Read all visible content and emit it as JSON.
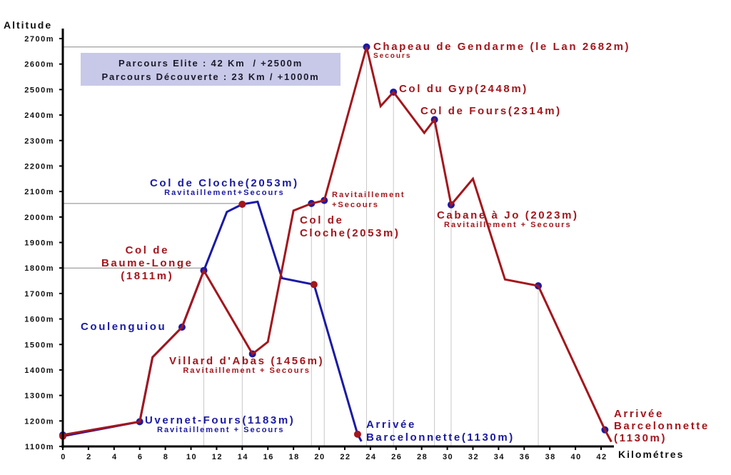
{
  "chart_data": {
    "type": "line",
    "title": "",
    "xlabel": "Kilométres",
    "ylabel": "Altitude",
    "xlim": [
      0,
      43
    ],
    "ylim": [
      1100,
      2700
    ],
    "x_ticks": [
      0,
      2,
      4,
      6,
      8,
      10,
      12,
      14,
      16,
      18,
      20,
      22,
      24,
      26,
      28,
      30,
      32,
      34,
      36,
      38,
      40,
      42
    ],
    "y_ticks": [
      "1100m",
      "1200m",
      "1300m",
      "1400m",
      "1500m",
      "1600m",
      "1700m",
      "1800m",
      "1900m",
      "2000m",
      "2100m",
      "2200m",
      "2300m",
      "2400m",
      "2500m",
      "2600m",
      "2700m"
    ],
    "grid": "partial vertical guide lines at checkpoints",
    "legend": "none",
    "series": [
      {
        "name": "Parcours Elite",
        "color": "#a3161c",
        "points": [
          [
            0,
            1145
          ],
          [
            6,
            1197
          ],
          [
            7,
            1450
          ],
          [
            9.3,
            1568
          ],
          [
            11,
            1790
          ],
          [
            14.8,
            1463
          ],
          [
            16,
            1510
          ],
          [
            18,
            2025
          ],
          [
            19.4,
            2053
          ],
          [
            20.4,
            2065
          ],
          [
            23.7,
            2667
          ],
          [
            24.8,
            2435
          ],
          [
            25.8,
            2490
          ],
          [
            28.2,
            2330
          ],
          [
            29,
            2382
          ],
          [
            30.3,
            2048
          ],
          [
            32,
            2150
          ],
          [
            34.5,
            1755
          ],
          [
            37.1,
            1730
          ],
          [
            42.3,
            1165
          ],
          [
            42.8,
            1118
          ]
        ]
      },
      {
        "name": "Parcours Découverte",
        "color": "#1a1aa6",
        "points": [
          [
            0,
            1140
          ],
          [
            6,
            1197
          ],
          [
            7,
            1450
          ],
          [
            9.3,
            1568
          ],
          [
            11,
            1790
          ],
          [
            12.8,
            2020
          ],
          [
            14,
            2050
          ],
          [
            15.2,
            2060
          ],
          [
            17.1,
            1760
          ],
          [
            19.6,
            1735
          ],
          [
            23,
            1148
          ],
          [
            23.3,
            1120
          ]
        ]
      }
    ],
    "annotations": [
      {
        "text": "Chapeau de Gendarme (le Lan 2682m)",
        "sub": "Secours",
        "series": "Elite"
      },
      {
        "text": "Col du Gyp(2448m)",
        "series": "Elite"
      },
      {
        "text": "Col de Fours(2314m)",
        "series": "Elite"
      },
      {
        "text": "Cabane à Jo (2023m)",
        "sub": "Ravitaillement + Secours",
        "series": "Elite"
      },
      {
        "text": "Col de Cloche(2053m)",
        "sub": "Ravitaillement+Secours",
        "series": "Elite"
      },
      {
        "text": "Col de Cloche(2053m)",
        "sub": "Ravitaillement+Secours",
        "series": "Découverte"
      },
      {
        "text": "Col de Baume-Longe (1811m)",
        "series": "Elite"
      },
      {
        "text": "Coulenguiou",
        "series": "Découverte"
      },
      {
        "text": "Villard d'Abas (1456m)",
        "sub": "Ravitaillement + Secours",
        "series": "Elite"
      },
      {
        "text": "Uvernet-Fours(1183m)",
        "sub": "Ravitaillement + Secours",
        "series": "Découverte"
      },
      {
        "text": "Arrivée Barcelonnette(1130m)",
        "series": "Découverte"
      },
      {
        "text": "Arrivée Barcelonnette (1130m)",
        "series": "Elite"
      }
    ]
  },
  "axes": {
    "y_title": "Altitude",
    "x_title": "Kilométres"
  },
  "info_box": {
    "line1": "Parcours Elite : 42 Km  / +2500m",
    "line2": "Parcours Découverte : 23 Km / +1000m"
  },
  "labels": {
    "chapeau": "Chapeau de Gendarme (le Lan 2682m)",
    "chapeau_sub": "Secours",
    "gyp": "Col du Gyp(2448m)",
    "fours": "Col de Fours(2314m)",
    "cabane": "Cabane à Jo (2023m)",
    "cabane_sub": "Ravitaillement + Secours",
    "ravit_red_1": "Ravitaillement",
    "ravit_red_2": "+Secours",
    "cloche_red_1": "Col de",
    "cloche_red_2": "Cloche(2053m)",
    "cloche_blue": "Col de Cloche(2053m)",
    "cloche_blue_sub": "Ravitaillement+Secours",
    "baume_1": "Col de",
    "baume_2": "Baume-Longe",
    "baume_3": "(1811m)",
    "coulenguiou": "Coulenguiou",
    "villard": "Villard d'Abas (1456m)",
    "villard_sub": "Ravitaillement + Secours",
    "uvernet": "Uvernet-Fours(1183m)",
    "uvernet_sub": "Ravitaillement + Secours",
    "arrivee_blue_1": "Arrivée",
    "arrivee_blue_2": "Barcelonnette(1130m)",
    "arrivee_red_1": "Arrivée",
    "arrivee_red_2": "Barcelonnette",
    "arrivee_red_3": "(1130m)"
  }
}
